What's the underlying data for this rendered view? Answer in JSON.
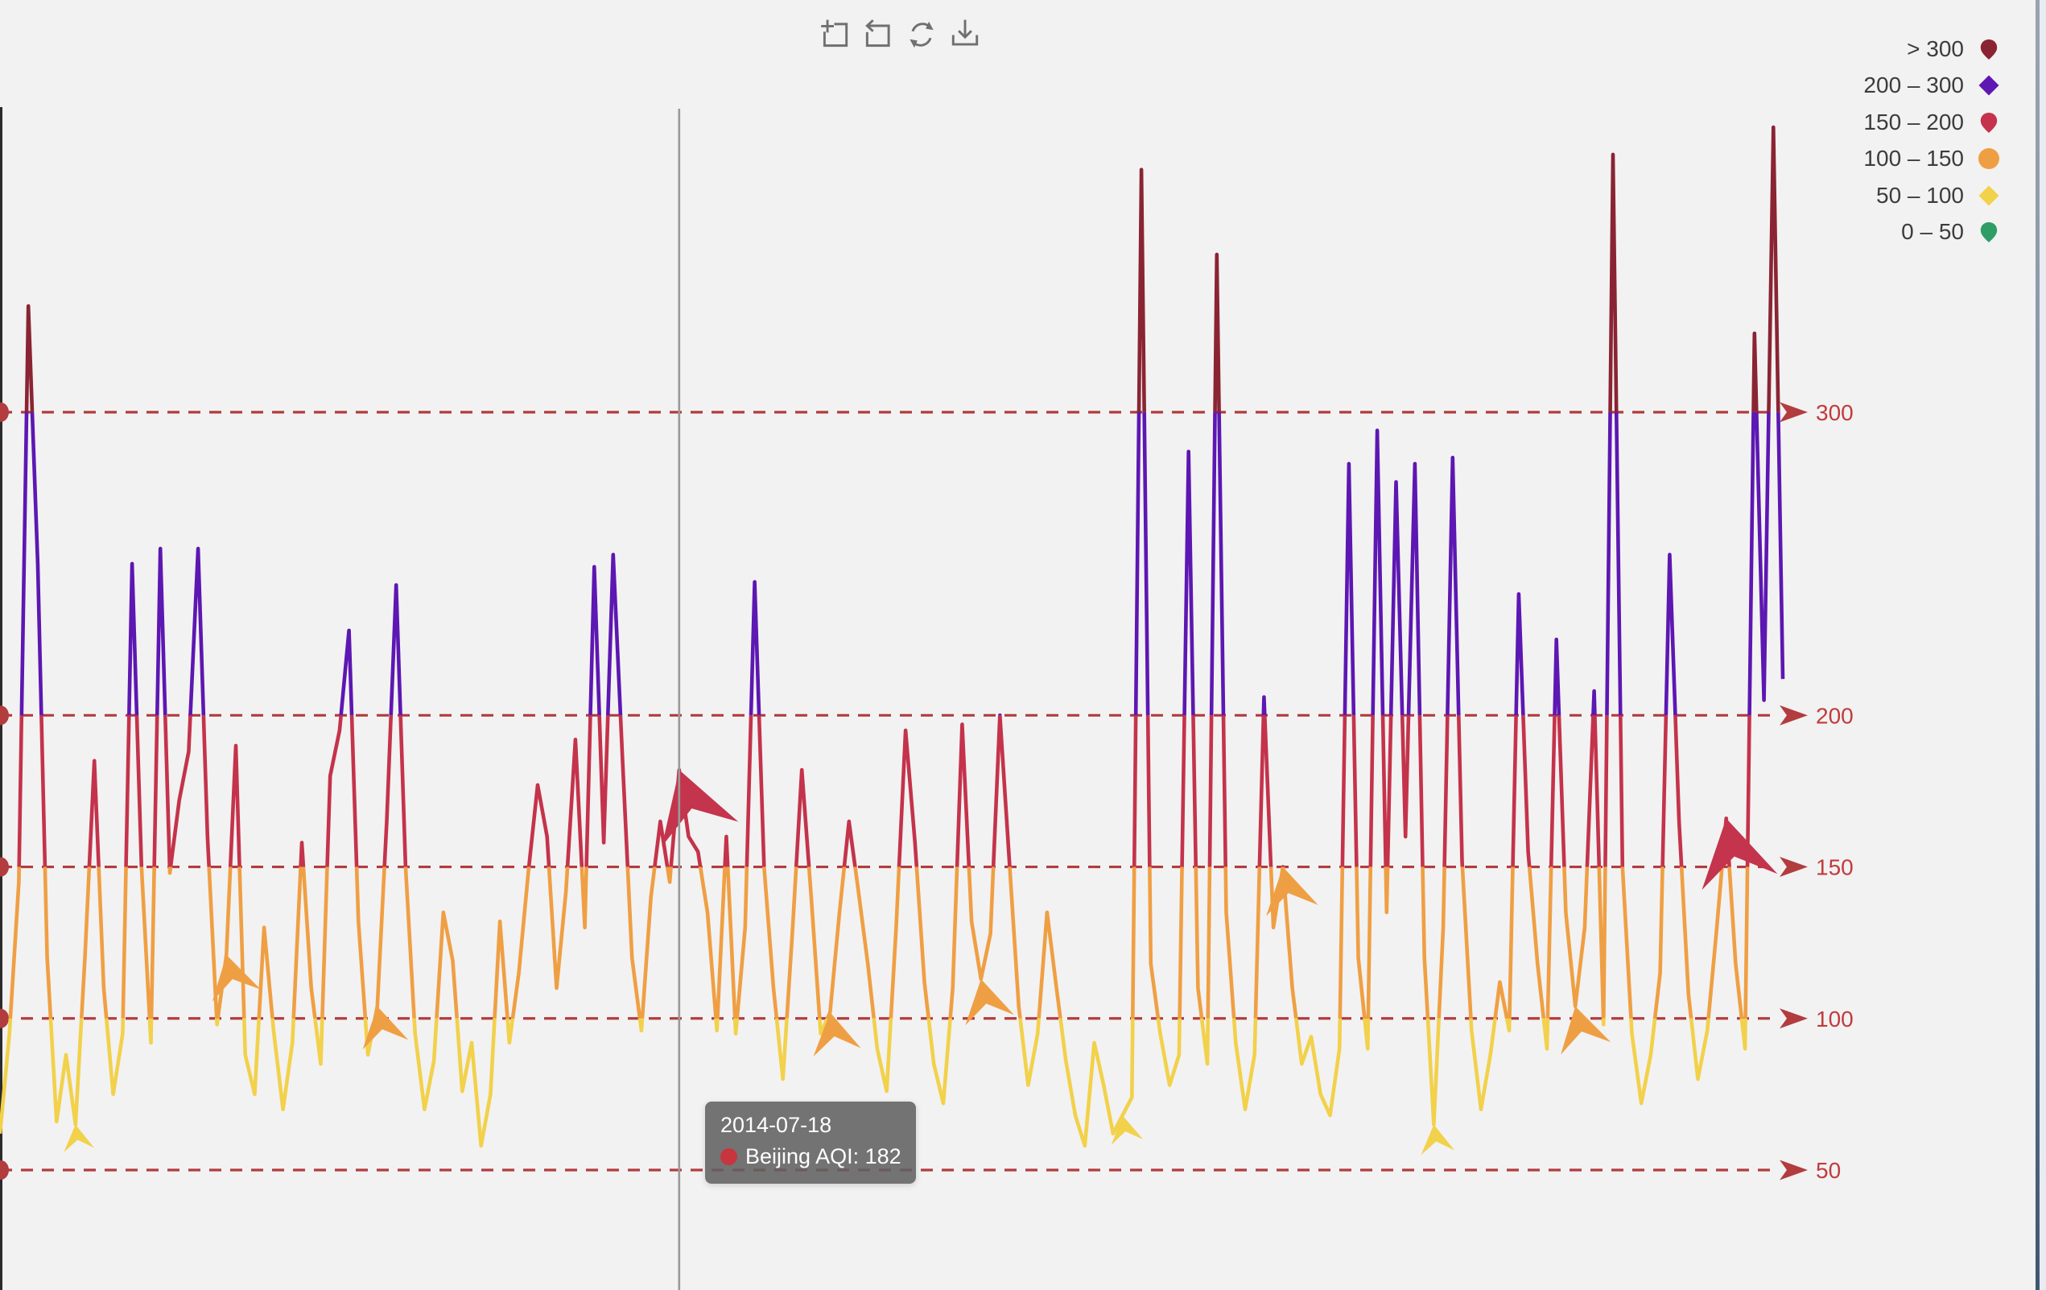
{
  "window": {
    "background": "#F2F2F2"
  },
  "toolbox": {
    "color": "#707070",
    "icons": [
      {
        "name": "data-zoom"
      },
      {
        "name": "zoom-reset"
      },
      {
        "name": "restore"
      },
      {
        "name": "save-image"
      }
    ]
  },
  "tooltip": {
    "date": "2014-07-18",
    "text": "Beijing AQI: 182",
    "marker_color": "#C8353F"
  },
  "chart_data": {
    "type": "line",
    "series_name": "Beijing AQI",
    "x_axis": "daily dates (labels not visible, chart panned/zoomed)",
    "ylim_visible": [
      0,
      400
    ],
    "grid": "off",
    "legend_position": "top-right",
    "highlighted_point": {
      "index": 72,
      "date": "2014-07-18",
      "value": 182
    },
    "pieces": [
      {
        "label": "> 300",
        "min": 300,
        "max": 1000,
        "color": "#8A2433",
        "symbol": "pin"
      },
      {
        "label": "200 – 300",
        "min": 200,
        "max": 300,
        "color": "#5D17B2",
        "symbol": "diamond"
      },
      {
        "label": "150 – 200",
        "min": 150,
        "max": 200,
        "color": "#C4334B",
        "symbol": "pin"
      },
      {
        "label": "100 – 150",
        "min": 100,
        "max": 150,
        "color": "#EF9F43",
        "symbol": "circle"
      },
      {
        "label": "50 – 100",
        "min": 50,
        "max": 100,
        "color": "#F2D14B",
        "symbol": "diamond"
      },
      {
        "label": "0 – 50",
        "min": 0,
        "max": 50,
        "color": "#2F9E66",
        "symbol": "pin"
      }
    ],
    "marklines": [
      {
        "value": 300,
        "label": "300"
      },
      {
        "value": 200,
        "label": "200"
      },
      {
        "value": 150,
        "label": "150"
      },
      {
        "value": 100,
        "label": "100"
      },
      {
        "value": 50,
        "label": "50"
      }
    ],
    "markline_style": {
      "dash_color": "#B23C3E",
      "label_color": "#C23B3D"
    },
    "axis_pointer_color": "#9A9A9A",
    "values": [
      62,
      95,
      145,
      335,
      250,
      120,
      66,
      88,
      65,
      120,
      185,
      110,
      75,
      95,
      250,
      150,
      92,
      255,
      148,
      172,
      188,
      255,
      160,
      98,
      121,
      190,
      88,
      75,
      130,
      96,
      70,
      92,
      158,
      110,
      85,
      180,
      195,
      228,
      132,
      88,
      104,
      165,
      243,
      150,
      95,
      70,
      86,
      135,
      119,
      76,
      92,
      58,
      75,
      132,
      92,
      115,
      148,
      177,
      160,
      110,
      142,
      192,
      130,
      249,
      158,
      253,
      185,
      120,
      96,
      140,
      165,
      145,
      182,
      160,
      155,
      135,
      96,
      160,
      95,
      130,
      244,
      150,
      110,
      80,
      128,
      182,
      140,
      95,
      102,
      135,
      165,
      142,
      118,
      90,
      76,
      130,
      195,
      158,
      112,
      85,
      72,
      110,
      197,
      132,
      113,
      128,
      200,
      152,
      104,
      78,
      95,
      135,
      110,
      86,
      68,
      58,
      92,
      78,
      62,
      68,
      74,
      380,
      118,
      95,
      78,
      88,
      287,
      110,
      85,
      352,
      135,
      92,
      70,
      88,
      206,
      130,
      150,
      110,
      85,
      94,
      75,
      68,
      90,
      283,
      120,
      90,
      294,
      135,
      277,
      160,
      283,
      120,
      65,
      130,
      285,
      152,
      96,
      70,
      88,
      112,
      96,
      240,
      155,
      118,
      90,
      225,
      135,
      104,
      130,
      208,
      98,
      385,
      150,
      95,
      72,
      88,
      115,
      253,
      165,
      108,
      80,
      96,
      130,
      166,
      118,
      90,
      326,
      205,
      394,
      212
    ],
    "arrow_markers": [
      {
        "index": 8,
        "size": 38,
        "color": "#F2D14B",
        "rotate": -8
      },
      {
        "index": 24,
        "size": 62,
        "color": "#EF9F43",
        "rotate": -14
      },
      {
        "index": 40,
        "size": 58,
        "color": "#EF9F43",
        "rotate": -12
      },
      {
        "index": 72,
        "size": 100,
        "color": "#C4344C",
        "rotate": -18
      },
      {
        "index": 88,
        "size": 60,
        "color": "#EF9F43",
        "rotate": -10
      },
      {
        "index": 104,
        "size": 62,
        "color": "#EF9F43",
        "rotate": -12
      },
      {
        "index": 119,
        "size": 40,
        "color": "#F2D14B",
        "rotate": -10
      },
      {
        "index": 136,
        "size": 66,
        "color": "#EF9F43",
        "rotate": -12
      },
      {
        "index": 152,
        "size": 42,
        "color": "#F2D14B",
        "rotate": -8
      },
      {
        "index": 167,
        "size": 64,
        "color": "#EF9F43",
        "rotate": -14
      },
      {
        "index": 183,
        "size": 96,
        "color": "#C4344C",
        "rotate": -12
      }
    ]
  }
}
